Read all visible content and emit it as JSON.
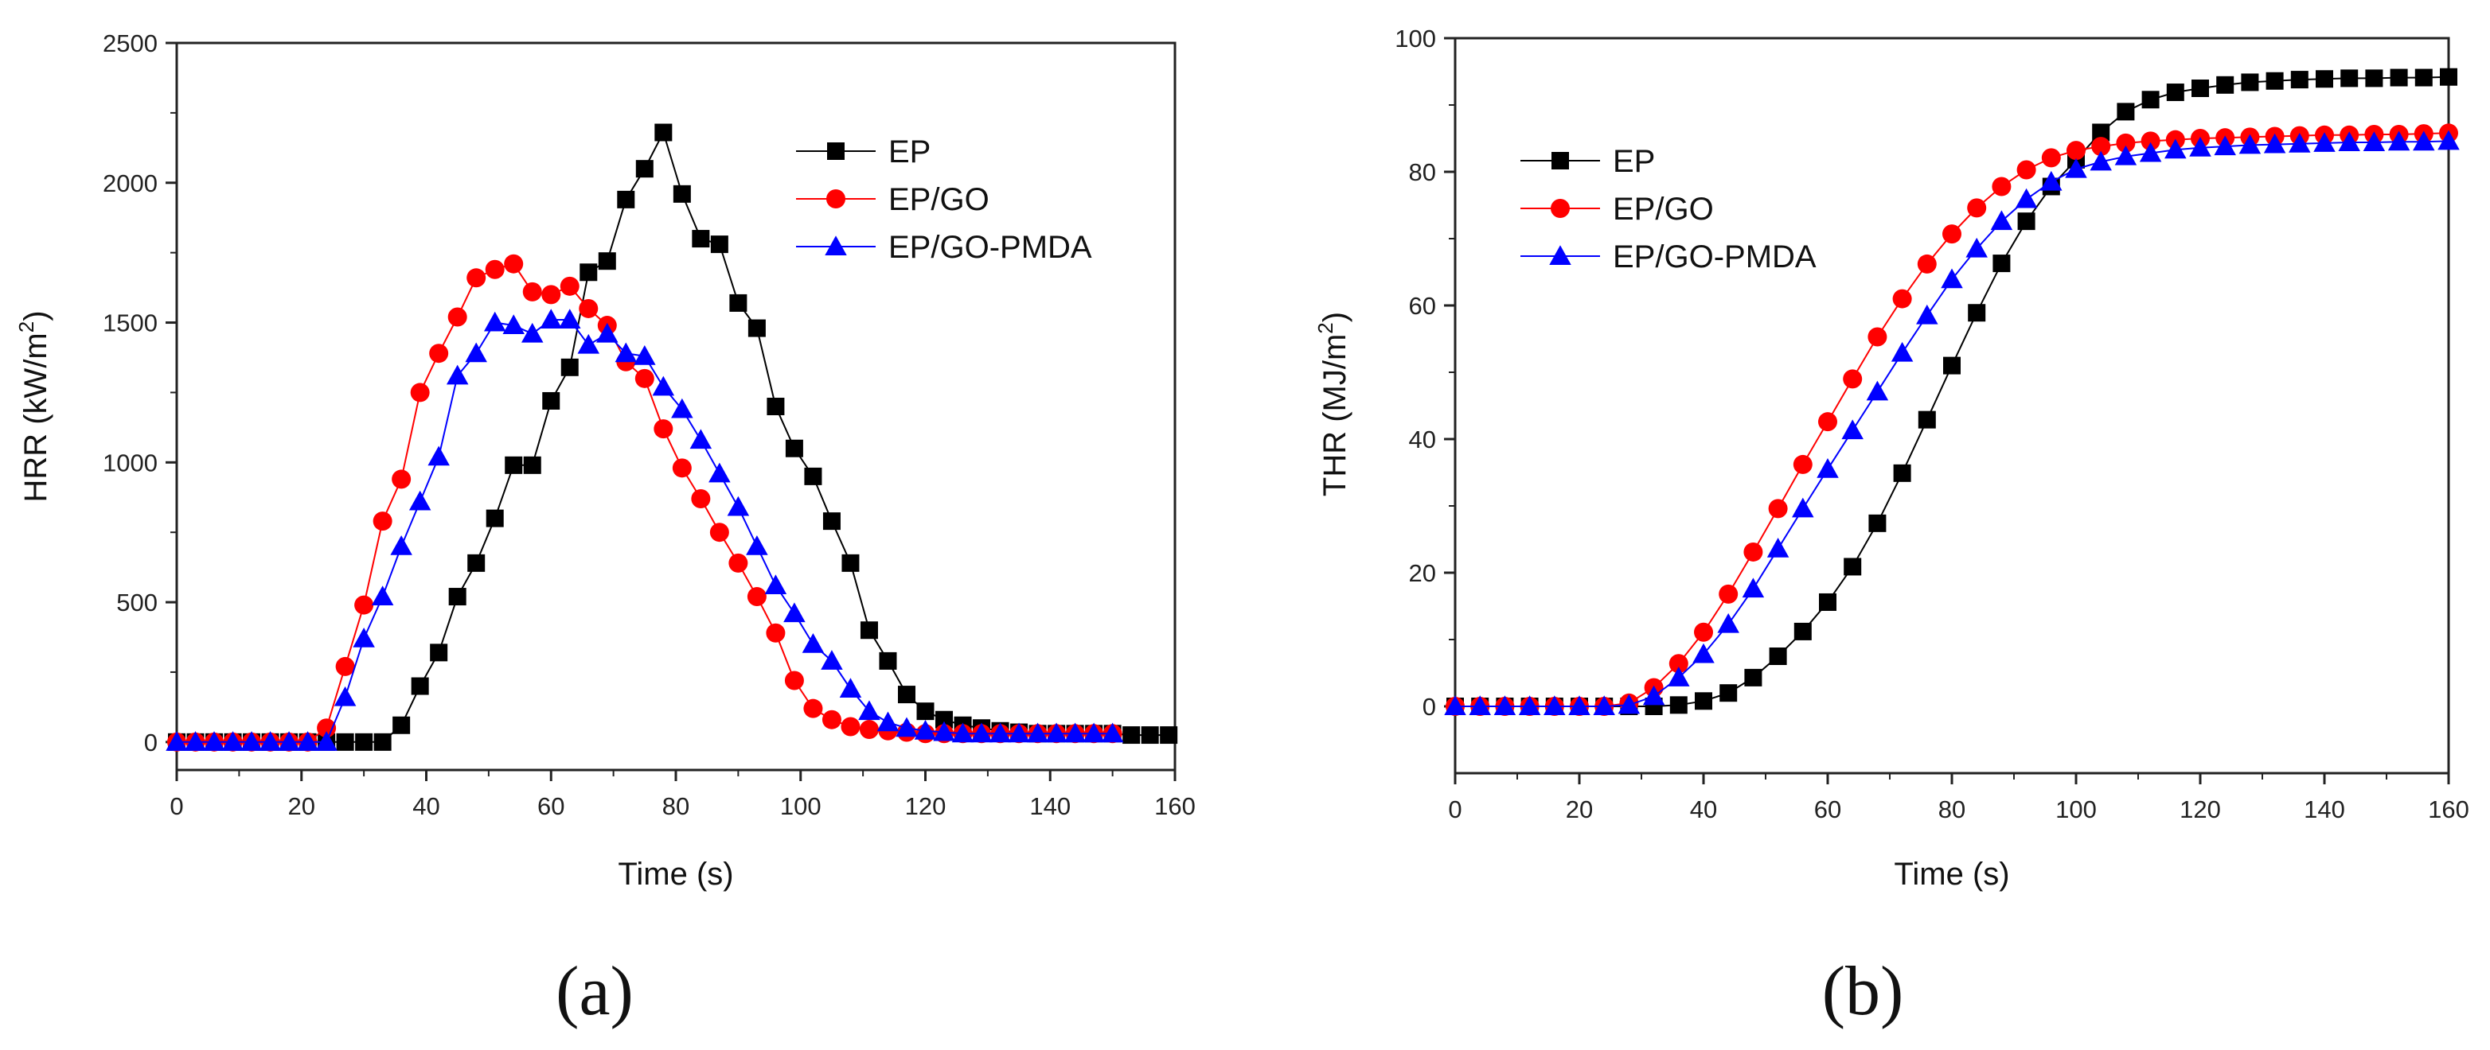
{
  "chart_data": [
    {
      "type": "line",
      "panel_label": "(a)",
      "xlabel": "Time (s)",
      "ylabel": "HRR (kW/m²)",
      "ylabel_main": "HRR (kW/m",
      "ylabel_sup": "2",
      "ylabel_end": ")",
      "xlim": [
        0,
        160
      ],
      "ylim": [
        -100,
        2500
      ],
      "xticks": [
        0,
        20,
        40,
        60,
        80,
        100,
        120,
        140,
        160
      ],
      "yticks": [
        0,
        500,
        1000,
        1500,
        2000,
        2500
      ],
      "legend_position": "top-right",
      "series": [
        {
          "name": "EP",
          "color": "#000000",
          "marker": "square",
          "x": [
            0,
            3,
            6,
            9,
            12,
            15,
            18,
            21,
            24,
            27,
            30,
            33,
            36,
            39,
            42,
            45,
            48,
            51,
            54,
            57,
            60,
            63,
            66,
            69,
            72,
            75,
            78,
            81,
            84,
            87,
            90,
            93,
            96,
            99,
            102,
            105,
            108,
            111,
            114,
            117,
            120,
            123,
            126,
            129,
            132,
            135,
            138,
            141,
            144,
            147,
            150,
            153,
            156,
            159
          ],
          "y": [
            0,
            0,
            0,
            0,
            0,
            0,
            0,
            0,
            0,
            0,
            0,
            0,
            60,
            200,
            320,
            520,
            640,
            800,
            990,
            990,
            1220,
            1340,
            1680,
            1720,
            1940,
            2050,
            2180,
            1960,
            1800,
            1780,
            1570,
            1480,
            1200,
            1050,
            950,
            790,
            640,
            400,
            290,
            170,
            110,
            80,
            60,
            50,
            40,
            35,
            30,
            30,
            30,
            30,
            30,
            25,
            25,
            25
          ]
        },
        {
          "name": "EP/GO",
          "color": "#ff0000",
          "marker": "circle",
          "x": [
            0,
            3,
            6,
            9,
            12,
            15,
            18,
            21,
            24,
            27,
            30,
            33,
            36,
            39,
            42,
            45,
            48,
            51,
            54,
            57,
            60,
            63,
            66,
            69,
            72,
            75,
            78,
            81,
            84,
            87,
            90,
            93,
            96,
            99,
            102,
            105,
            108,
            111,
            114,
            117,
            120,
            123,
            126,
            129,
            132,
            135,
            138,
            141,
            144,
            147,
            150
          ],
          "y": [
            0,
            0,
            0,
            0,
            0,
            0,
            0,
            0,
            50,
            270,
            490,
            790,
            940,
            1250,
            1390,
            1520,
            1660,
            1690,
            1710,
            1610,
            1600,
            1630,
            1550,
            1490,
            1360,
            1300,
            1120,
            980,
            870,
            750,
            640,
            520,
            390,
            220,
            120,
            80,
            55,
            45,
            40,
            35,
            30,
            30,
            30,
            30,
            30,
            30,
            30,
            30,
            30,
            30,
            30
          ]
        },
        {
          "name": "EP/GO-PMDA",
          "color": "#0000ff",
          "marker": "triangle",
          "x": [
            0,
            3,
            6,
            9,
            12,
            15,
            18,
            21,
            24,
            27,
            30,
            33,
            36,
            39,
            42,
            45,
            48,
            51,
            54,
            57,
            60,
            63,
            66,
            69,
            72,
            75,
            78,
            81,
            84,
            87,
            90,
            93,
            96,
            99,
            102,
            105,
            108,
            111,
            114,
            117,
            120,
            123,
            126,
            129,
            132,
            135,
            138,
            141,
            144,
            147,
            150
          ],
          "y": [
            0,
            0,
            0,
            0,
            0,
            0,
            0,
            0,
            0,
            160,
            370,
            520,
            700,
            860,
            1020,
            1310,
            1390,
            1500,
            1490,
            1460,
            1510,
            1510,
            1420,
            1460,
            1390,
            1380,
            1270,
            1190,
            1080,
            960,
            840,
            700,
            560,
            460,
            350,
            290,
            190,
            110,
            70,
            50,
            40,
            35,
            30,
            30,
            30,
            30,
            30,
            30,
            30,
            30,
            30
          ]
        }
      ]
    },
    {
      "type": "line",
      "panel_label": "(b)",
      "xlabel": "Time (s)",
      "ylabel": "THR (MJ/m²)",
      "ylabel_main": "THR (MJ/m",
      "ylabel_sup": "2",
      "ylabel_end": ")",
      "xlim": [
        0,
        160
      ],
      "ylim": [
        -10,
        100
      ],
      "xticks": [
        0,
        20,
        40,
        60,
        80,
        100,
        120,
        140,
        160
      ],
      "yticks": [
        0,
        20,
        40,
        60,
        80,
        100
      ],
      "legend_position": "top-left",
      "series": [
        {
          "name": "EP",
          "color": "#000000",
          "marker": "square",
          "x": [
            0,
            4,
            8,
            12,
            16,
            20,
            24,
            28,
            32,
            36,
            40,
            44,
            48,
            52,
            56,
            60,
            64,
            68,
            72,
            76,
            80,
            84,
            88,
            92,
            96,
            100,
            104,
            108,
            112,
            116,
            120,
            124,
            128,
            132,
            136,
            140,
            144,
            148,
            152,
            156,
            160
          ],
          "y": [
            0,
            0,
            0,
            0,
            0,
            0,
            0,
            0,
            0,
            0.2,
            0.8,
            2,
            4.3,
            7.5,
            11.2,
            15.6,
            20.9,
            27.4,
            34.9,
            42.9,
            51,
            58.9,
            66.3,
            72.6,
            77.8,
            81.8,
            85.9,
            89,
            90.8,
            91.9,
            92.5,
            93,
            93.4,
            93.6,
            93.8,
            93.9,
            94,
            94,
            94.1,
            94.1,
            94.2
          ]
        },
        {
          "name": "EP/GO",
          "color": "#ff0000",
          "marker": "circle",
          "x": [
            0,
            4,
            8,
            12,
            16,
            20,
            24,
            28,
            32,
            36,
            40,
            44,
            48,
            52,
            56,
            60,
            64,
            68,
            72,
            76,
            80,
            84,
            88,
            92,
            96,
            100,
            104,
            108,
            112,
            116,
            120,
            124,
            128,
            132,
            136,
            140,
            144,
            148,
            152,
            156,
            160
          ],
          "y": [
            0,
            0,
            0,
            0,
            0,
            0,
            0,
            0.5,
            2.8,
            6.4,
            11.1,
            16.8,
            23.1,
            29.6,
            36.2,
            42.6,
            49,
            55.3,
            61,
            66.2,
            70.7,
            74.6,
            77.8,
            80.3,
            82.1,
            83.2,
            83.8,
            84.3,
            84.6,
            84.8,
            85,
            85.1,
            85.2,
            85.3,
            85.4,
            85.5,
            85.5,
            85.6,
            85.6,
            85.7,
            85.8
          ]
        },
        {
          "name": "EP/GO-PMDA",
          "color": "#0000ff",
          "marker": "triangle",
          "x": [
            0,
            4,
            8,
            12,
            16,
            20,
            24,
            28,
            32,
            36,
            40,
            44,
            48,
            52,
            56,
            60,
            64,
            68,
            72,
            76,
            80,
            84,
            88,
            92,
            96,
            100,
            104,
            108,
            112,
            116,
            120,
            124,
            128,
            132,
            136,
            140,
            144,
            148,
            152,
            156,
            160
          ],
          "y": [
            0,
            0,
            0,
            0,
            0,
            0,
            0,
            0.2,
            1.5,
            4.3,
            7.8,
            12.3,
            17.6,
            23.6,
            29.6,
            35.5,
            41.3,
            47.1,
            52.9,
            58.5,
            63.9,
            68.5,
            72.6,
            75.9,
            78.5,
            80.4,
            81.5,
            82.3,
            82.8,
            83.3,
            83.6,
            83.8,
            84,
            84.1,
            84.2,
            84.3,
            84.4,
            84.4,
            84.5,
            84.5,
            84.6
          ]
        }
      ]
    }
  ]
}
